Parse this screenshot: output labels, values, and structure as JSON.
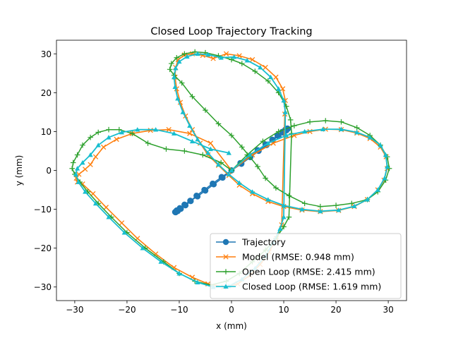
{
  "chart_data": {
    "type": "line",
    "title": "Closed Loop Trajectory Tracking",
    "xlabel": "x (mm)",
    "ylabel": "y (mm)",
    "xlim": [
      -33.5,
      33.5
    ],
    "ylim": [
      -33.5,
      33.5
    ],
    "xticks": [
      -30,
      -20,
      -10,
      0,
      10,
      20,
      30
    ],
    "yticks": [
      -30,
      -20,
      -10,
      0,
      10,
      20,
      30
    ],
    "xtick_labels": [
      "−30",
      "−20",
      "−10",
      "0",
      "10",
      "20",
      "30"
    ],
    "ytick_labels": [
      "−30",
      "−20",
      "−10",
      "0",
      "10",
      "20",
      "30"
    ],
    "grid": false,
    "legend_position": "lower-right",
    "colors": {
      "trajectory": "#1f77b4",
      "model": "#ff7f0e",
      "open_loop": "#2ca02c",
      "closed_loop": "#17becf"
    },
    "series": [
      {
        "name": "Trajectory",
        "marker": "circle",
        "color": "#1f77b4",
        "x": [
          0,
          1.7,
          3.4,
          5,
          6.5,
          7.9,
          9.0,
          9.9,
          10.5,
          10.8,
          10.7,
          10.3,
          9.7,
          8.8,
          7.8,
          6.7,
          5.2,
          3.6,
          1.9,
          0,
          -1.9,
          -3.6,
          -5.2,
          -6.7,
          -7.8,
          -8.8,
          -9.7,
          -10.3,
          -10.7,
          -10.8,
          -10.5,
          -9.9,
          -9.0,
          -7.9,
          -6.5,
          -5.0,
          -3.4,
          -1.7,
          0,
          1.7,
          3.4,
          5,
          6.5,
          7.9,
          9.0,
          9.9,
          10.5,
          10.8,
          10.7,
          10.3,
          9.7,
          8.8,
          7.8,
          6.7,
          5.2,
          3.6,
          1.9,
          0,
          -1.9,
          -3.6,
          -5.2,
          -6.7,
          -7.8,
          -8.8,
          -9.7,
          -10.3,
          -10.7,
          -10.8,
          -10.5,
          -9.9,
          -9.0,
          -7.9,
          -6.5,
          -5.0,
          -3.4,
          -1.7,
          0,
          1.9,
          3.6,
          5.2,
          6.7,
          7.8,
          8.8,
          9.7,
          10.3,
          10.7,
          10.8,
          10.5,
          9.9,
          9.0,
          7.9,
          6.5,
          5.0,
          3.4,
          1.7,
          0
        ],
        "y": [
          0,
          1.9,
          3.6,
          5.2,
          6.7,
          7.8,
          8.8,
          9.7,
          10.3,
          10.7,
          10.8,
          10.5,
          9.9,
          9.0,
          7.9,
          6.5,
          5.0,
          3.4,
          1.7,
          0,
          -1.7,
          -3.4,
          -5.0,
          -6.5,
          -7.9,
          -9.0,
          -9.9,
          -10.5,
          -10.8,
          -10.7,
          -10.3,
          -9.7,
          -8.8,
          -7.8,
          -6.7,
          -5.2,
          -3.6,
          -1.9,
          0,
          1.9,
          3.6,
          5.2,
          6.7,
          7.8,
          8.8,
          9.7,
          10.3,
          10.7,
          10.8,
          10.5,
          9.9,
          9.0,
          7.9,
          6.5,
          5.0,
          3.4,
          1.7,
          0,
          -1.7,
          -3.4,
          -5.0,
          -6.5,
          -7.9,
          -9.0,
          -9.9,
          -10.5,
          -10.8,
          -10.7,
          -10.3,
          -9.7,
          -8.8,
          -7.8,
          -6.7,
          -5.2,
          -3.6,
          -1.9,
          0,
          1.7,
          3.4,
          5.0,
          6.5,
          7.9,
          9.0,
          9.9,
          10.5,
          10.8,
          10.7,
          10.3,
          9.7,
          8.8,
          7.8,
          6.7,
          5.2,
          3.6,
          1.9,
          0
        ]
      },
      {
        "name": "Model (RMSE: 0.948 mm)",
        "marker": "x",
        "color": "#ff7f0e",
        "x": [
          0,
          4,
          8,
          12,
          15,
          18,
          21,
          24,
          26.5,
          28.5,
          29.6,
          29.8,
          29.2,
          28,
          26,
          23.5,
          20.5,
          17,
          13.5,
          10,
          7,
          4,
          1.5,
          -0.5,
          -2.5,
          -4.5,
          -6,
          -7.5,
          -8.8,
          -9.8,
          -10.5,
          -10.8,
          -10.7,
          -10.2,
          -9,
          -7.5,
          -5.5,
          -3.5,
          -1,
          1.5,
          4,
          6.5,
          8.5,
          9.8,
          10.3,
          10.2,
          9.6,
          8.6,
          7.2,
          5.5,
          3.5,
          1.2,
          -1.5,
          -4.5,
          -7.5,
          -11,
          -14.5,
          -18,
          -21,
          -24,
          -26.5,
          -28.5,
          -29.5,
          -29.7,
          -29.2,
          -28,
          -27,
          -26,
          -24.5,
          -22,
          -19,
          -15.5,
          -12,
          -8,
          -4,
          0
        ],
        "y": [
          0,
          4,
          7,
          9,
          10,
          10.6,
          10.5,
          9.6,
          8.2,
          6,
          3.5,
          0.5,
          -2.5,
          -5,
          -7.5,
          -9.3,
          -10.3,
          -10.6,
          -10.2,
          -9.3,
          -8,
          -6,
          -3.8,
          -1.3,
          1.3,
          4,
          7,
          10.5,
          14,
          17.5,
          21,
          24,
          26.5,
          28.5,
          29.7,
          30,
          29.6,
          28.8,
          30,
          29.5,
          28.5,
          26.5,
          24,
          21,
          18,
          14.5,
          -14,
          -17.5,
          -21,
          -24.2,
          -27,
          -29.2,
          -30,
          -29.2,
          -27.5,
          -25,
          -21.5,
          -17.5,
          -13.5,
          -9.5,
          -6,
          -3.5,
          -3,
          -2,
          -1,
          0.3,
          1.5,
          3.5,
          6,
          8,
          9.5,
          10.3,
          10.5,
          9.5,
          7,
          0
        ]
      },
      {
        "name": "Open Loop (RMSE: 2.415 mm)",
        "marker": "plus",
        "color": "#2ca02c",
        "x": [
          0,
          3,
          6,
          9,
          12,
          15,
          18,
          21,
          24,
          26.5,
          28.5,
          29.8,
          30.2,
          29.5,
          28,
          26,
          23,
          20,
          17,
          14,
          11,
          8.5,
          6.5,
          5,
          3.5,
          2,
          0,
          -2.5,
          -5,
          -7.5,
          -9.5,
          -11,
          -11.8,
          -11.5,
          -10.5,
          -9,
          -7,
          -5,
          -2.5,
          0,
          2,
          4.5,
          7,
          9,
          10.5,
          11.3,
          11.5,
          11,
          10,
          8.5,
          6.5,
          4,
          1.5,
          -1,
          -4,
          -7,
          -10,
          -13,
          -16.5,
          -20,
          -23,
          -25.5,
          -27.5,
          -29,
          -30,
          -30.5,
          -30.3,
          -29.5,
          -28.5,
          -27,
          -25.5,
          -23.5,
          -21.5,
          -19,
          -16,
          -12.5,
          -9,
          -5.5,
          -2,
          0
        ],
        "y": [
          0,
          4,
          7.5,
          10,
          11.5,
          12.5,
          12.8,
          12.5,
          11,
          9,
          6.5,
          3.5,
          0.5,
          -2.5,
          -5.5,
          -7.5,
          -8.5,
          -9,
          -9.3,
          -8.5,
          -6.5,
          -4.5,
          -2,
          1,
          3.5,
          6,
          9,
          12,
          15.5,
          19,
          22.5,
          24.5,
          26,
          27.5,
          29,
          30,
          30.5,
          30.3,
          29.5,
          28.5,
          27.5,
          25.5,
          23,
          20,
          16.5,
          13,
          9.5,
          -12,
          -14.5,
          -17.5,
          -20.5,
          -23.5,
          -26.5,
          -28.5,
          -29.5,
          -28.5,
          -26.5,
          -23.5,
          -20,
          -16,
          -12,
          -8.5,
          -5.5,
          -3,
          -1,
          0.5,
          2,
          4,
          6.5,
          8.5,
          9.8,
          10.5,
          10.5,
          9.5,
          7,
          5.5,
          5,
          4,
          2,
          0
        ]
      },
      {
        "name": "Closed Loop (RMSE: 1.619 mm)",
        "marker": "triangle",
        "color": "#17becf",
        "x": [
          0,
          3.5,
          7,
          10.5,
          14,
          17.5,
          21,
          24,
          26.5,
          28.5,
          29.5,
          29.8,
          29.3,
          28,
          26,
          23.5,
          20.5,
          17,
          13.5,
          10,
          7,
          4,
          1.5,
          -0.5,
          -2.5,
          -4.5,
          -6.5,
          -8,
          -9.3,
          -10.3,
          -10.8,
          -11,
          -10.7,
          -10,
          -8.5,
          -6.5,
          -4.5,
          -2,
          0.5,
          3,
          5.5,
          7.5,
          9,
          10,
          10.3,
          10,
          9.3,
          8,
          6.5,
          4.5,
          2,
          -0.5,
          -3.5,
          -6.5,
          -10,
          -13.5,
          -17,
          -20.5,
          -23.5,
          -26,
          -28,
          -29.3,
          -29.8,
          -29.5,
          -28.5,
          -27,
          -25.5,
          -23.5,
          -21,
          -18,
          -14.5,
          -11,
          -7.5,
          -4,
          -0.5
        ],
        "y": [
          0,
          4,
          7,
          9,
          10,
          10.6,
          10.6,
          9.8,
          8.5,
          6.5,
          4,
          1,
          -2,
          -5,
          -7.5,
          -9.2,
          -10.2,
          -10.5,
          -10,
          -9,
          -7.5,
          -5.5,
          -3.2,
          -1,
          1.5,
          4.5,
          8,
          11.5,
          15,
          18.5,
          21.5,
          24,
          26.3,
          28,
          29.3,
          30,
          29.8,
          29,
          29.2,
          28.3,
          26.5,
          24,
          21,
          18,
          15,
          -12,
          -15,
          -18.5,
          -22,
          -25.2,
          -28,
          -29.8,
          -30,
          -28.8,
          -26.5,
          -23.5,
          -20,
          -16,
          -12,
          -8.5,
          -5.5,
          -3,
          -1,
          0.5,
          2,
          4,
          6.5,
          8.5,
          9.8,
          10.5,
          10.5,
          9.5,
          7.5,
          5.5,
          4.5
        ]
      }
    ]
  }
}
